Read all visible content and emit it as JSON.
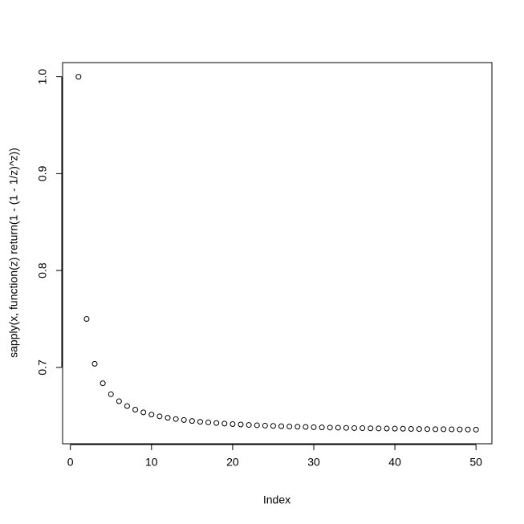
{
  "chart_data": {
    "type": "scatter",
    "x_label": "Index",
    "y_label": "sapply(x, function(z) return(1 - (1 - 1/z)^z))",
    "x": [
      1,
      2,
      3,
      4,
      5,
      6,
      7,
      8,
      9,
      10,
      11,
      12,
      13,
      14,
      15,
      16,
      17,
      18,
      19,
      20,
      21,
      22,
      23,
      24,
      25,
      26,
      27,
      28,
      29,
      30,
      31,
      32,
      33,
      34,
      35,
      36,
      37,
      38,
      39,
      40,
      41,
      42,
      43,
      44,
      45,
      46,
      47,
      48,
      49,
      50
    ],
    "values": [
      1.0,
      0.75,
      0.7037,
      0.6836,
      0.6723,
      0.6651,
      0.6601,
      0.6564,
      0.6536,
      0.6513,
      0.6495,
      0.648,
      0.6467,
      0.6457,
      0.6447,
      0.6439,
      0.6432,
      0.6426,
      0.642,
      0.6415,
      0.6411,
      0.6406,
      0.6403,
      0.6399,
      0.6396,
      0.6393,
      0.639,
      0.6388,
      0.6386,
      0.6383,
      0.6381,
      0.6379,
      0.6378,
      0.6376,
      0.6374,
      0.6373,
      0.6371,
      0.637,
      0.6369,
      0.6368,
      0.6367,
      0.6365,
      0.6364,
      0.6363,
      0.6362,
      0.6362,
      0.6361,
      0.636,
      0.6359,
      0.6358
    ],
    "color": "#000000",
    "xlim": [
      -0.96,
      51.96
    ],
    "xticks": [
      0,
      10,
      20,
      30,
      40,
      50
    ],
    "ylim": [
      0.6212,
      1.0146
    ],
    "yticks": [
      0.7,
      0.8,
      0.9,
      {
        "value": 1,
        "label": "1.0"
      }
    ],
    "grid": false
  }
}
